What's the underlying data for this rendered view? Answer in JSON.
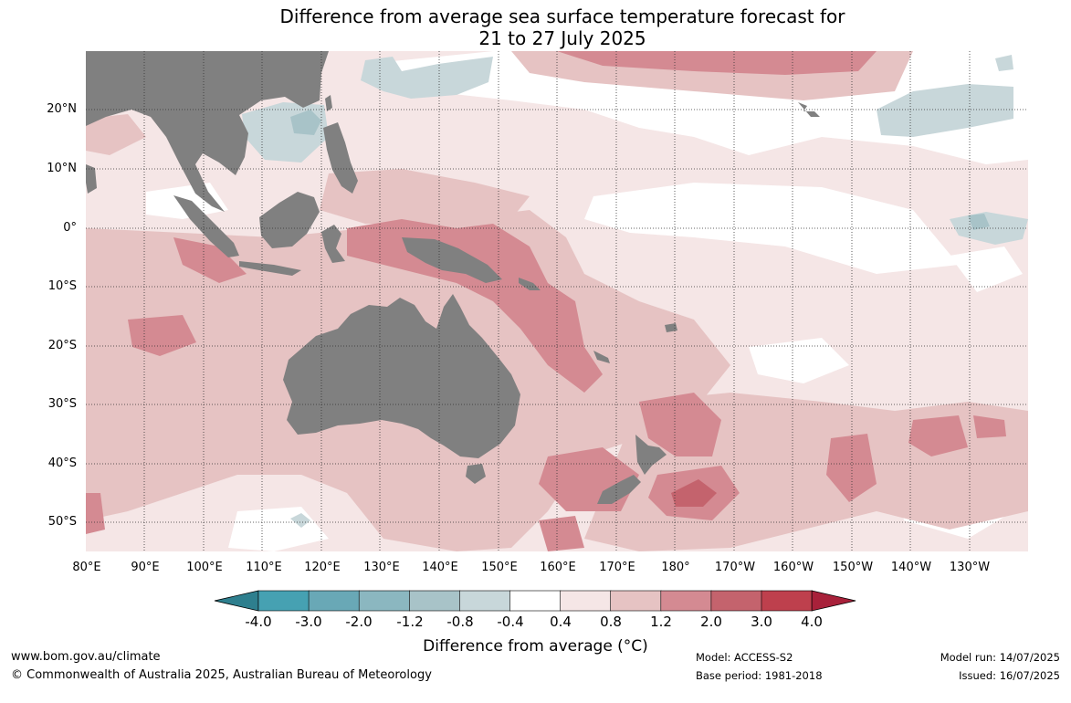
{
  "title": {
    "line1": "Difference from average sea surface temperature forecast for",
    "line2": "21 to 27 July 2025"
  },
  "map": {
    "lat_labels": [
      "20°N",
      "10°N",
      "0°",
      "10°S",
      "20°S",
      "30°S",
      "40°S",
      "50°S"
    ],
    "lon_labels": [
      "80°E",
      "90°E",
      "100°E",
      "110°E",
      "120°E",
      "130°E",
      "140°E",
      "150°E",
      "160°E",
      "170°E",
      "180°",
      "170°W",
      "160°W",
      "150°W",
      "140°W",
      "130°W"
    ],
    "land_color": "#808080",
    "gridlines": "dotted"
  },
  "colorbar": {
    "ticks": [
      "-4.0",
      "-3.0",
      "-2.0",
      "-1.2",
      "-0.8",
      "-0.4",
      "0.4",
      "0.8",
      "1.2",
      "2.0",
      "3.0",
      "4.0"
    ],
    "colors": [
      "#2e7f8e",
      "#46a1b2",
      "#69a8b6",
      "#8bb7c0",
      "#a8c3c8",
      "#c8d7da",
      "#ffffff",
      "#f5e6e6",
      "#e6c3c3",
      "#d48a92",
      "#c4636d",
      "#be404d",
      "#a8213a"
    ],
    "label": "Difference from average (°C)"
  },
  "footer": {
    "url": "www.bom.gov.au/climate",
    "copyright": "© Commonwealth of Australia 2025, Australian Bureau of Meteorology",
    "model": "Model: ACCESS-S2",
    "base_period": "Base period: 1981-2018",
    "model_run": "Model run: 14/07/2025",
    "issued": "Issued: 16/07/2025"
  }
}
